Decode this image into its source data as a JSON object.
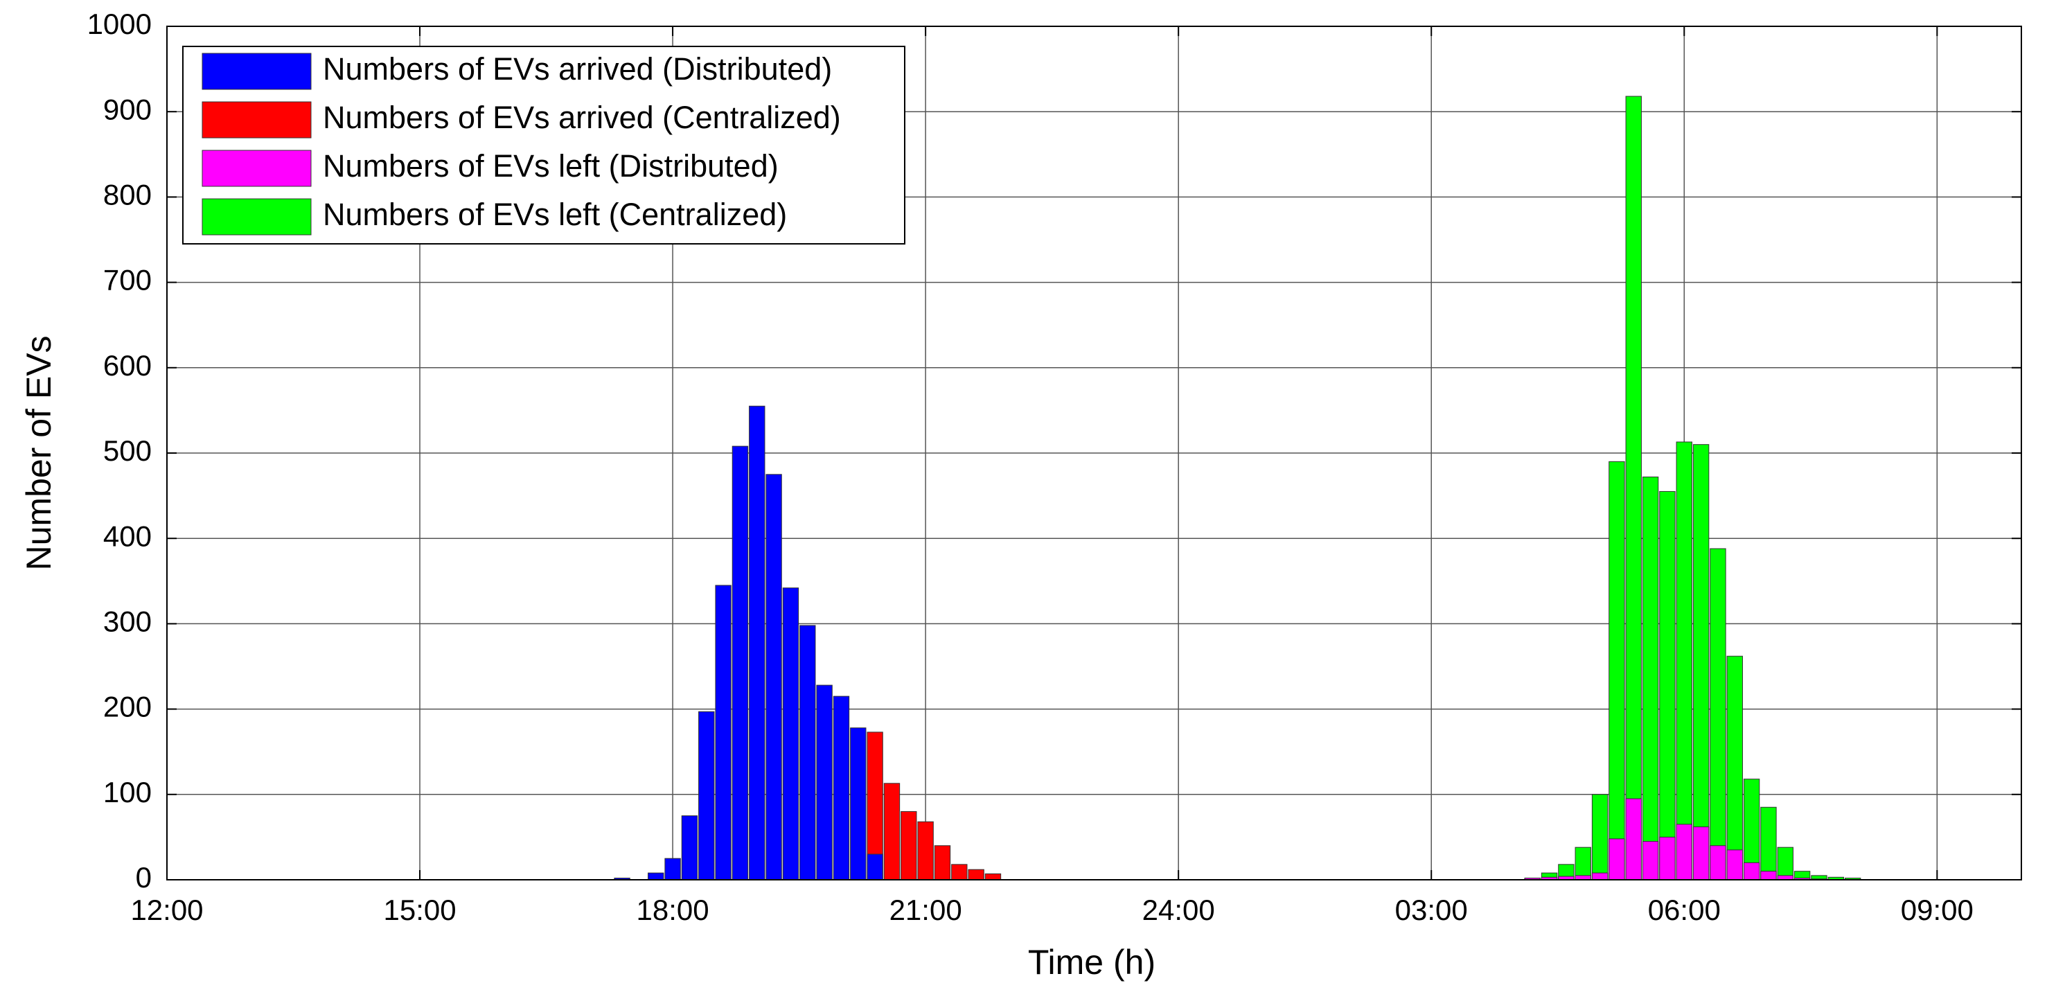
{
  "chart_data": {
    "type": "bar",
    "xlabel": "Time (h)",
    "ylabel": "Number of EVs",
    "xlim": [
      12,
      34
    ],
    "ylim": [
      0,
      1000
    ],
    "xticks": [
      {
        "value": 12,
        "label": "12:00"
      },
      {
        "value": 15,
        "label": "15:00"
      },
      {
        "value": 18,
        "label": "18:00"
      },
      {
        "value": 21,
        "label": "21:00"
      },
      {
        "value": 24,
        "label": "24:00"
      },
      {
        "value": 27,
        "label": "03:00"
      },
      {
        "value": 30,
        "label": "06:00"
      },
      {
        "value": 33,
        "label": "09:00"
      }
    ],
    "yticks": [
      0,
      100,
      200,
      300,
      400,
      500,
      600,
      700,
      800,
      900,
      1000
    ],
    "grid": true,
    "legend": "upper left",
    "series": [
      {
        "name": "Numbers of EVs arrived (Distributed)",
        "color": "#0000ff",
        "x": [
          17.4,
          17.8,
          18.0,
          18.2,
          18.4,
          18.6,
          18.8,
          19.0,
          19.2,
          19.4,
          19.6,
          19.8,
          20.0,
          20.2,
          20.4
        ],
        "values": [
          2,
          8,
          25,
          75,
          197,
          345,
          508,
          555,
          475,
          342,
          298,
          228,
          215,
          178,
          30
        ]
      },
      {
        "name": "Numbers of EVs arrived (Centralized)",
        "color": "#ff0000",
        "x": [
          20.4,
          20.6,
          20.8,
          21.0,
          21.2,
          21.4,
          21.6,
          21.8
        ],
        "values": [
          173,
          113,
          80,
          68,
          40,
          18,
          12,
          7
        ]
      },
      {
        "name": "Numbers of EVs left (Distributed)",
        "color": "#ff00ff",
        "x": [
          28.2,
          28.4,
          28.6,
          28.8,
          29.0,
          29.2,
          29.4,
          29.6,
          29.8,
          30.0,
          30.2,
          30.4,
          30.6,
          30.8,
          31.0,
          31.2,
          31.4,
          31.6
        ],
        "values": [
          2,
          3,
          4,
          5,
          8,
          48,
          95,
          45,
          50,
          65,
          62,
          40,
          35,
          20,
          10,
          5,
          2,
          1
        ]
      },
      {
        "name": "Numbers of EVs left (Centralized)",
        "color": "#00ff00",
        "x": [
          28.2,
          28.4,
          28.6,
          28.8,
          29.0,
          29.2,
          29.4,
          29.6,
          29.8,
          30.0,
          30.2,
          30.4,
          30.6,
          30.8,
          31.0,
          31.2,
          31.4,
          31.6,
          31.8,
          32.0
        ],
        "values": [
          2,
          8,
          18,
          38,
          100,
          490,
          918,
          472,
          455,
          513,
          510,
          388,
          262,
          118,
          85,
          38,
          10,
          5,
          3,
          2
        ]
      }
    ]
  }
}
